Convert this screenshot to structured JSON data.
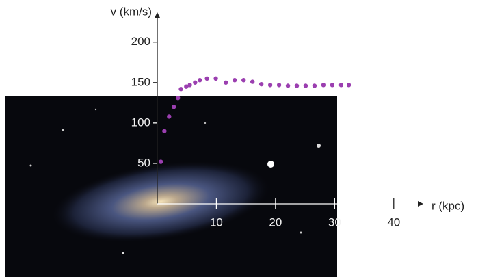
{
  "chart_data": {
    "type": "scatter",
    "x_label": "r (kpc)",
    "y_label": "v (km/s)",
    "color": "#9b3fb0",
    "x": [
      0.6,
      1.2,
      2.0,
      2.8,
      3.5,
      4.0,
      4.9,
      5.5,
      6.4,
      7.2,
      8.4,
      9.9,
      11.6,
      13.1,
      14.6,
      16.1,
      17.6,
      19.1,
      20.6,
      22.1,
      23.6,
      25.1,
      26.6,
      28.1,
      29.6,
      31.1,
      32.4
    ],
    "values": [
      52,
      90,
      108,
      120,
      131,
      142,
      145,
      147,
      150,
      153,
      155,
      155,
      150,
      153,
      153,
      151,
      148,
      147,
      147,
      146,
      146,
      146,
      146,
      147,
      147,
      147,
      147
    ],
    "xlim": [
      0,
      45
    ],
    "ylim": [
      0,
      237
    ],
    "xticks": [
      10,
      20,
      30,
      40
    ],
    "yticks": [
      50,
      100,
      150,
      200
    ]
  }
}
